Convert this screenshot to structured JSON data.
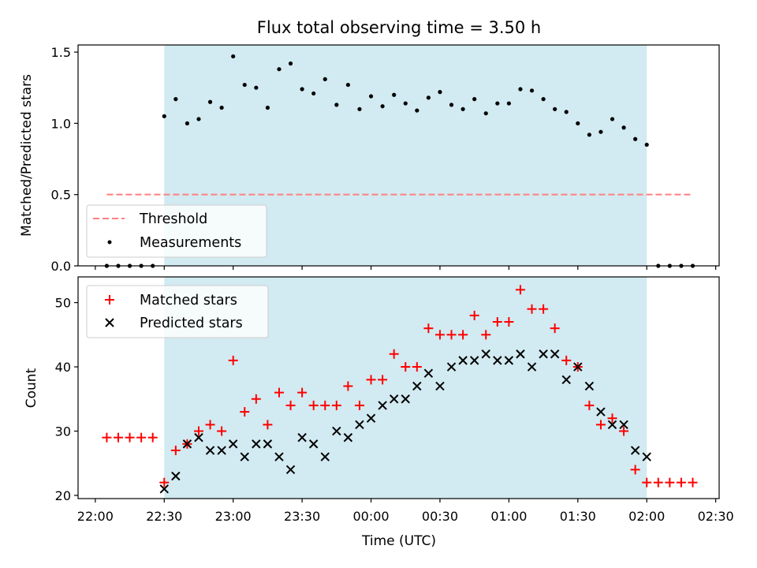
{
  "colors": {
    "shade": "#add8e6",
    "threshold": "#ff7f7f",
    "matched": "#ff0000",
    "predicted": "#000000",
    "measurement": "#000000"
  },
  "chart_data": [
    {
      "type": "scatter",
      "title": "Flux total observing time = 3.50 h",
      "ylabel": "Matched/Predicted stars",
      "ylim": [
        0,
        1.55
      ],
      "yticks": [
        "0.0",
        "0.5",
        "1.0",
        "1.5"
      ],
      "xlim": [
        "22:00",
        "02:30"
      ],
      "shaded_interval": [
        "22:30",
        "02:00"
      ],
      "legend_position": "lower-left",
      "series": [
        {
          "name": "Threshold",
          "kind": "dashed-line",
          "x": [
            "22:05",
            "02:20"
          ],
          "y": [
            0.5,
            0.5
          ]
        },
        {
          "name": "Measurements",
          "kind": "dot",
          "x": [
            "22:05",
            "22:10",
            "22:15",
            "22:20",
            "22:25",
            "22:30",
            "22:35",
            "22:40",
            "22:45",
            "22:50",
            "22:55",
            "23:00",
            "23:05",
            "23:10",
            "23:15",
            "23:20",
            "23:25",
            "23:30",
            "23:35",
            "23:40",
            "23:45",
            "23:50",
            "23:55",
            "00:00",
            "00:05",
            "00:10",
            "00:15",
            "00:20",
            "00:25",
            "00:30",
            "00:35",
            "00:40",
            "00:45",
            "00:50",
            "00:55",
            "01:00",
            "01:05",
            "01:10",
            "01:15",
            "01:20",
            "01:25",
            "01:30",
            "01:35",
            "01:40",
            "01:45",
            "01:50",
            "01:55",
            "02:00",
            "02:05",
            "02:10",
            "02:15",
            "02:20"
          ],
          "y": [
            0,
            0,
            0,
            0,
            0,
            1.05,
            1.17,
            1.0,
            1.03,
            1.15,
            1.11,
            1.47,
            1.27,
            1.25,
            1.11,
            1.38,
            1.42,
            1.24,
            1.21,
            1.31,
            1.13,
            1.27,
            1.1,
            1.19,
            1.12,
            1.2,
            1.14,
            1.09,
            1.18,
            1.22,
            1.13,
            1.1,
            1.17,
            1.07,
            1.14,
            1.14,
            1.24,
            1.23,
            1.17,
            1.1,
            1.08,
            1.0,
            0.92,
            0.94,
            1.03,
            0.97,
            0.89,
            0.85,
            0,
            0,
            0,
            0
          ]
        }
      ]
    },
    {
      "type": "scatter",
      "xlabel": "Time (UTC)",
      "ylabel": "Count",
      "ylim": [
        19.5,
        54
      ],
      "yticks": [
        "20",
        "30",
        "40",
        "50"
      ],
      "xlim": [
        "22:00",
        "02:30"
      ],
      "xticks": [
        "22:00",
        "22:30",
        "23:00",
        "23:30",
        "00:00",
        "00:30",
        "01:00",
        "01:30",
        "02:00",
        "02:30"
      ],
      "shaded_interval": [
        "22:30",
        "02:00"
      ],
      "legend_position": "upper-left",
      "series": [
        {
          "name": "Matched stars",
          "kind": "plus",
          "x": [
            "22:05",
            "22:10",
            "22:15",
            "22:20",
            "22:25",
            "22:30",
            "22:35",
            "22:40",
            "22:45",
            "22:50",
            "22:55",
            "23:00",
            "23:05",
            "23:10",
            "23:15",
            "23:20",
            "23:25",
            "23:30",
            "23:35",
            "23:40",
            "23:45",
            "23:50",
            "23:55",
            "00:00",
            "00:05",
            "00:10",
            "00:15",
            "00:20",
            "00:25",
            "00:30",
            "00:35",
            "00:40",
            "00:45",
            "00:50",
            "00:55",
            "01:00",
            "01:05",
            "01:10",
            "01:15",
            "01:20",
            "01:25",
            "01:30",
            "01:35",
            "01:40",
            "01:45",
            "01:50",
            "01:55",
            "02:00",
            "02:05",
            "02:10",
            "02:15",
            "02:20"
          ],
          "y": [
            29,
            29,
            29,
            29,
            29,
            22,
            27,
            28,
            30,
            31,
            30,
            41,
            33,
            35,
            31,
            36,
            34,
            36,
            34,
            34,
            34,
            37,
            34,
            38,
            38,
            42,
            40,
            40,
            46,
            45,
            45,
            45,
            48,
            45,
            47,
            47,
            52,
            49,
            49,
            46,
            41,
            40,
            34,
            31,
            32,
            30,
            24,
            22,
            22,
            22,
            22,
            22
          ]
        },
        {
          "name": "Predicted stars",
          "kind": "x",
          "x": [
            "22:30",
            "22:35",
            "22:40",
            "22:45",
            "22:50",
            "22:55",
            "23:00",
            "23:05",
            "23:10",
            "23:15",
            "23:20",
            "23:25",
            "23:30",
            "23:35",
            "23:40",
            "23:45",
            "23:50",
            "23:55",
            "00:00",
            "00:05",
            "00:10",
            "00:15",
            "00:20",
            "00:25",
            "00:30",
            "00:35",
            "00:40",
            "00:45",
            "00:50",
            "00:55",
            "01:00",
            "01:05",
            "01:10",
            "01:15",
            "01:20",
            "01:25",
            "01:30",
            "01:35",
            "01:40",
            "01:45",
            "01:50",
            "01:55",
            "02:00"
          ],
          "y": [
            21,
            23,
            28,
            29,
            27,
            27,
            28,
            26,
            28,
            28,
            26,
            24,
            29,
            28,
            26,
            30,
            29,
            31,
            32,
            34,
            35,
            35,
            37,
            39,
            37,
            40,
            41,
            41,
            42,
            41,
            41,
            42,
            40,
            42,
            42,
            38,
            40,
            37,
            33,
            31,
            31,
            27,
            26
          ]
        }
      ]
    }
  ]
}
